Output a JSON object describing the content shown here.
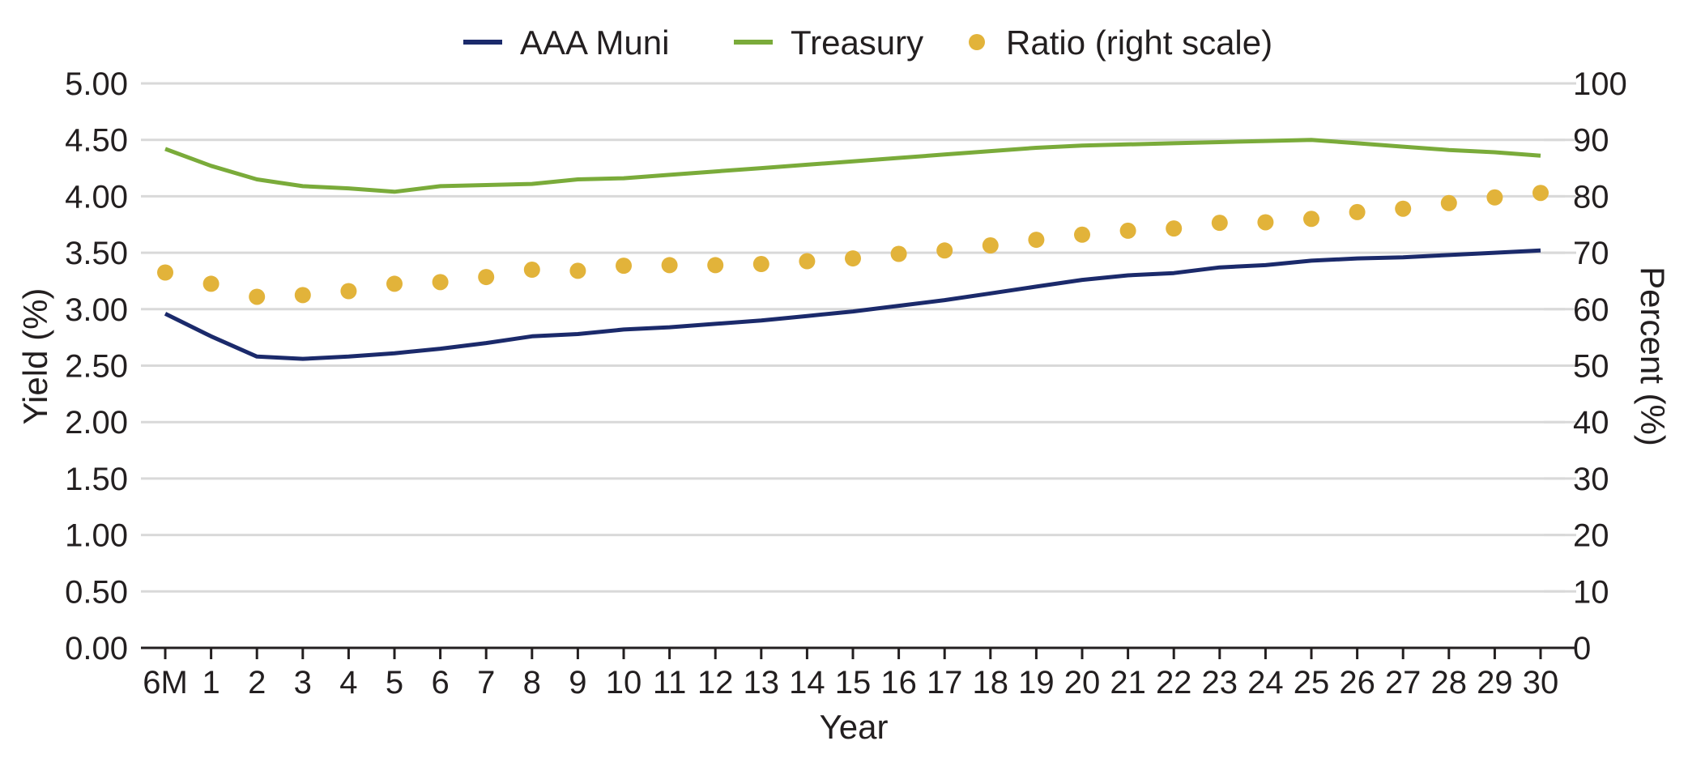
{
  "chart_data": {
    "type": "line",
    "x_label": "Year",
    "y_left_label": "Yield (%)",
    "y_right_label": "Percent (%)",
    "categories": [
      "6M",
      "1",
      "2",
      "3",
      "4",
      "5",
      "6",
      "7",
      "8",
      "9",
      "10",
      "11",
      "12",
      "13",
      "14",
      "15",
      "16",
      "17",
      "18",
      "19",
      "20",
      "21",
      "22",
      "23",
      "24",
      "25",
      "26",
      "27",
      "28",
      "29",
      "30"
    ],
    "y_left_ticks": [
      "0.00",
      "0.50",
      "1.00",
      "1.50",
      "2.00",
      "2.50",
      "3.00",
      "3.50",
      "4.00",
      "4.50",
      "5.00"
    ],
    "y_right_ticks": [
      "0",
      "10",
      "20",
      "30",
      "40",
      "50",
      "60",
      "70",
      "80",
      "90",
      "100"
    ],
    "ylim_left": [
      0,
      5
    ],
    "ylim_right": [
      0,
      100
    ],
    "grid": true,
    "legend_position": "top",
    "series": [
      {
        "name": "AAA Muni",
        "kind": "line",
        "axis": "left",
        "color": "#1b2a6b",
        "values": [
          2.96,
          2.76,
          2.58,
          2.56,
          2.58,
          2.61,
          2.65,
          2.7,
          2.76,
          2.78,
          2.82,
          2.84,
          2.87,
          2.9,
          2.94,
          2.98,
          3.03,
          3.08,
          3.14,
          3.2,
          3.26,
          3.3,
          3.32,
          3.37,
          3.39,
          3.43,
          3.45,
          3.46,
          3.48,
          3.5,
          3.52
        ]
      },
      {
        "name": "Treasury",
        "kind": "line",
        "axis": "left",
        "color": "#7aab3a",
        "values": [
          4.42,
          4.27,
          4.15,
          4.09,
          4.07,
          4.04,
          4.09,
          4.1,
          4.11,
          4.15,
          4.16,
          4.19,
          4.22,
          4.25,
          4.28,
          4.31,
          4.34,
          4.37,
          4.4,
          4.43,
          4.45,
          4.46,
          4.47,
          4.48,
          4.49,
          4.5,
          4.47,
          4.44,
          4.41,
          4.39,
          4.36
        ]
      },
      {
        "name": "Ratio (right scale)",
        "kind": "dots",
        "axis": "right",
        "color": "#e2b33a",
        "values": [
          66.5,
          64.5,
          62.2,
          62.5,
          63.2,
          64.5,
          64.8,
          65.7,
          67.0,
          66.8,
          67.7,
          67.8,
          67.8,
          68.0,
          68.5,
          69.0,
          69.8,
          70.4,
          71.3,
          72.3,
          73.2,
          73.9,
          74.3,
          75.3,
          75.4,
          76.0,
          77.2,
          77.8,
          78.8,
          79.8,
          80.6
        ]
      }
    ]
  }
}
